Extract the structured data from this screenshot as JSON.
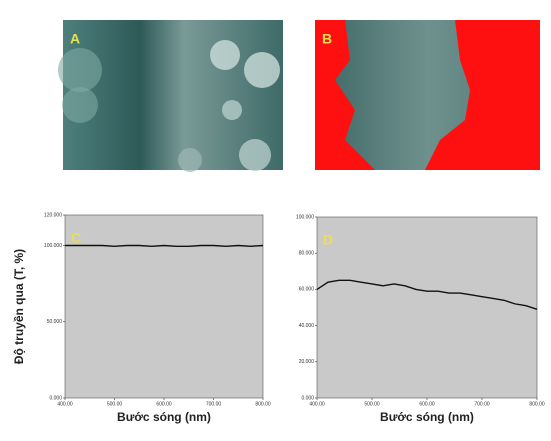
{
  "image_panels": [
    {
      "label": "A"
    },
    {
      "label": "B"
    }
  ],
  "chart_data": [
    {
      "type": "line",
      "panel_label": "C",
      "y_label": "Độ truyền qua (T, %)",
      "x_label": "Bước sóng (nm)",
      "x": [
        400,
        425,
        450,
        475,
        500,
        525,
        550,
        575,
        600,
        625,
        650,
        675,
        700,
        725,
        750,
        775,
        800
      ],
      "series": [
        {
          "name": "C",
          "color": "#111111",
          "values": [
            100,
            100,
            100,
            100,
            99.5,
            100,
            100,
            99.5,
            100,
            99.5,
            99.5,
            100,
            100,
            99.5,
            100,
            99.5,
            100
          ]
        }
      ],
      "xlim": [
        400,
        800
      ],
      "ylim": [
        0,
        120
      ],
      "xticks": [
        {
          "value": 400,
          "label": "400.00"
        },
        {
          "value": 500,
          "label": "500.00"
        },
        {
          "value": 600,
          "label": "600.00"
        },
        {
          "value": 700,
          "label": "700.00"
        },
        {
          "value": 800,
          "label": "800.00"
        }
      ],
      "yticks": [
        {
          "value": 0,
          "label": "0.000"
        },
        {
          "value": 50,
          "label": "50.000"
        },
        {
          "value": 100,
          "label": "100.000"
        },
        {
          "value": 120,
          "label": "120.000"
        }
      ]
    },
    {
      "type": "line",
      "panel_label": "D",
      "x_label": "Bước sóng (nm)",
      "x": [
        400,
        420,
        440,
        460,
        480,
        500,
        520,
        540,
        560,
        580,
        600,
        620,
        640,
        660,
        680,
        700,
        720,
        740,
        760,
        780,
        800
      ],
      "series": [
        {
          "name": "D",
          "color": "#111111",
          "values": [
            60,
            64,
            65,
            65,
            64,
            63,
            62,
            63,
            62,
            60,
            59,
            59,
            58,
            58,
            57,
            56,
            55,
            54,
            52,
            51,
            49
          ]
        }
      ],
      "xlim": [
        400,
        800
      ],
      "ylim": [
        0,
        100
      ],
      "xticks": [
        {
          "value": 400,
          "label": "400.00"
        },
        {
          "value": 500,
          "label": "500.00"
        },
        {
          "value": 600,
          "label": "600.00"
        },
        {
          "value": 700,
          "label": "700.00"
        },
        {
          "value": 800,
          "label": "800.00"
        }
      ],
      "yticks": [
        {
          "value": 0,
          "label": "0.000"
        },
        {
          "value": 20,
          "label": "20.000"
        },
        {
          "value": 40,
          "label": "40.000"
        },
        {
          "value": 60,
          "label": "60.000"
        },
        {
          "value": 80,
          "label": "80.000"
        },
        {
          "value": 100,
          "label": "100.000"
        }
      ]
    }
  ]
}
